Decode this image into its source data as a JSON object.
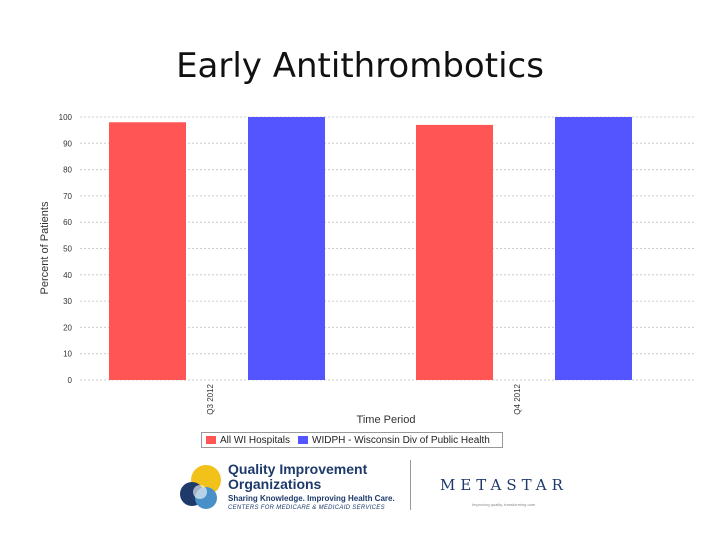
{
  "slide_title": "Early Antithrombotics",
  "chart_data": {
    "type": "bar",
    "ylabel": "Percent of Patients",
    "xlabel": "Time Period",
    "categories": [
      "Q3 2012",
      "Q4 2012"
    ],
    "yticks": [
      0,
      10,
      20,
      30,
      40,
      50,
      60,
      70,
      80,
      90,
      100
    ],
    "ytick_labels": [
      "0",
      "10",
      "20",
      "30",
      "40",
      "50",
      "60",
      "70",
      "80",
      "90",
      "100"
    ],
    "ylim": [
      0,
      100
    ],
    "grid": true,
    "legend_position": "bottom",
    "series": [
      {
        "name": "All WI Hospitals",
        "color": "#ff5555",
        "values": [
          98,
          97
        ]
      },
      {
        "name": "WIDPH - Wisconsin Div of Public Health",
        "color": "#5555ff",
        "values": [
          100,
          100
        ]
      }
    ]
  },
  "logos": {
    "qio_line1": "Quality Improvement",
    "qio_line2": "Organizations",
    "qio_line3": "Sharing Knowledge. Improving Health Care.",
    "qio_line4": "CENTERS FOR MEDICARE & MEDICAID SERVICES",
    "metastar": "METASTAR",
    "metastar_tagline": "Improving quality, transforming care"
  }
}
